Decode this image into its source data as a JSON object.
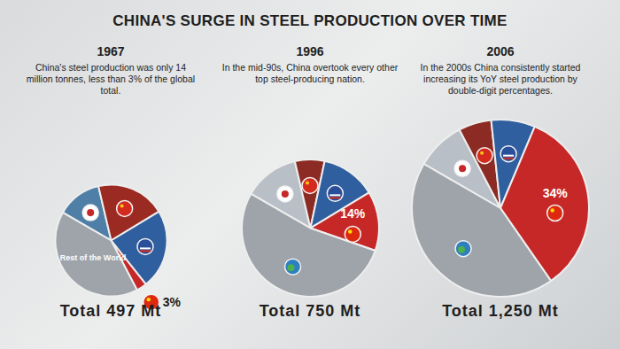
{
  "title": "CHINA'S SURGE IN STEEL PRODUCTION OVER TIME",
  "chart_data": [
    {
      "type": "pie",
      "title": "1967",
      "subtitle": "China's steel production was only 14 million tonnes, less than 3% of the global total.",
      "total": 497,
      "total_label": "Total 497 Mt",
      "categories": [
        null,
        null,
        null,
        null,
        "Rest of the World"
      ],
      "values": [
        13,
        20,
        23,
        3,
        41
      ],
      "value_labels": [
        null,
        null,
        null,
        "3%",
        null
      ],
      "colors": [
        "#4f7fa6",
        "#9b2a22",
        "#2f5f9e",
        "#c62828",
        "#9ea4aa"
      ]
    },
    {
      "type": "pie",
      "title": "1996",
      "subtitle": "In the mid-90s, China overtook every other top steel-producing nation.",
      "total": 750,
      "total_label": "Total 750 Mt",
      "categories": [
        null,
        null,
        null,
        null,
        null
      ],
      "values": [
        13,
        7,
        13,
        14,
        53
      ],
      "value_labels": [
        null,
        null,
        null,
        "14%",
        null
      ],
      "colors": [
        "#b9bfc6",
        "#8b2b23",
        "#2f5f9e",
        "#c62828",
        "#9ea4aa"
      ]
    },
    {
      "type": "pie",
      "title": "2006",
      "subtitle": "In the 2000s China consistently started increasing its YoY steel production by double-digit percentages.",
      "total": 1250,
      "total_label": "Total 1,250 Mt",
      "categories": [
        null,
        null,
        null,
        null,
        null
      ],
      "values": [
        9,
        6,
        8,
        34,
        43
      ],
      "value_labels": [
        null,
        null,
        null,
        "34%",
        null
      ],
      "colors": [
        "#b9bfc6",
        "#8b2b23",
        "#2f5f9e",
        "#c62828",
        "#9ea4aa"
      ]
    }
  ]
}
